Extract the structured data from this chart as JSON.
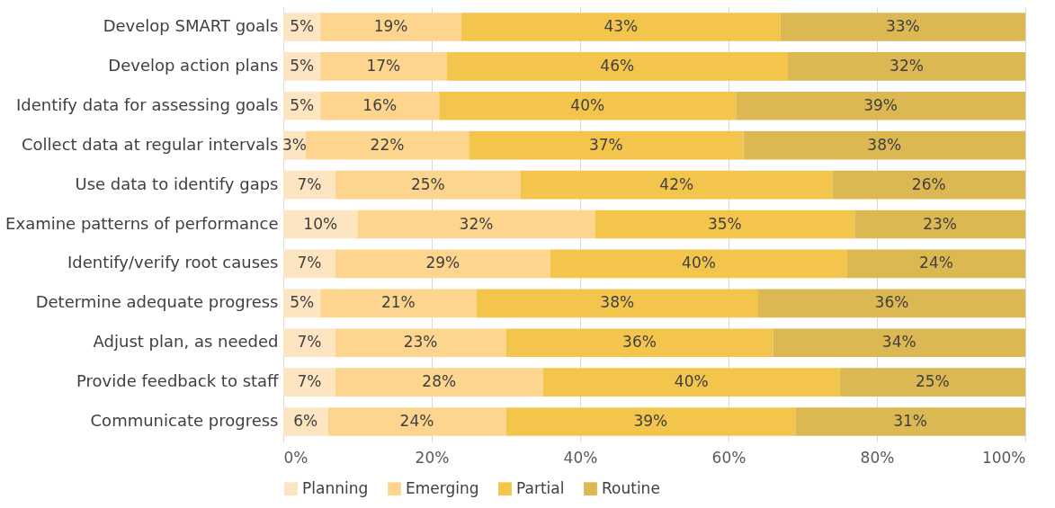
{
  "chart_data": {
    "type": "bar",
    "orientation": "horizontal",
    "stacked": true,
    "categories": [
      "Develop SMART goals",
      "Develop action plans",
      "Identify data for assessing goals",
      "Collect data at regular intervals",
      "Use data to identify gaps",
      "Examine patterns of performance",
      "Identify/verify root causes",
      "Determine adequate progress",
      "Adjust plan, as needed",
      "Provide feedback to staff",
      "Communicate progress"
    ],
    "series": [
      {
        "name": "Planning",
        "color": "#fde5c2",
        "values": [
          5,
          5,
          5,
          3,
          7,
          10,
          7,
          5,
          7,
          7,
          6
        ],
        "value_labels": [
          "5%",
          "5%",
          "5%",
          "3%",
          "7%",
          "10%",
          "7%",
          "5%",
          "7%",
          "7%",
          "6%"
        ]
      },
      {
        "name": "Emerging",
        "color": "#fdd58f",
        "values": [
          19,
          17,
          16,
          22,
          25,
          32,
          29,
          21,
          23,
          28,
          24
        ],
        "value_labels": [
          "19%",
          "17%",
          "16%",
          "22%",
          "25%",
          "32%",
          "29%",
          "21%",
          "23%",
          "28%",
          "24%"
        ]
      },
      {
        "name": "Partial",
        "color": "#f4c54c",
        "values": [
          43,
          46,
          40,
          37,
          42,
          35,
          40,
          38,
          36,
          40,
          39
        ],
        "value_labels": [
          "43%",
          "46%",
          "40%",
          "37%",
          "42%",
          "35%",
          "40%",
          "38%",
          "36%",
          "40%",
          "39%"
        ]
      },
      {
        "name": "Routine",
        "color": "#dcb852",
        "values": [
          33,
          32,
          39,
          38,
          26,
          23,
          24,
          36,
          34,
          25,
          31
        ],
        "value_labels": [
          "33%",
          "32%",
          "39%",
          "38%",
          "26%",
          "23%",
          "24%",
          "36%",
          "34%",
          "25%",
          "31%"
        ]
      }
    ],
    "xlim": [
      0,
      100
    ],
    "xticks": [
      {
        "value": 0,
        "label": "0%"
      },
      {
        "value": 20,
        "label": "20%"
      },
      {
        "value": 40,
        "label": "40%"
      },
      {
        "value": 60,
        "label": "60%"
      },
      {
        "value": 80,
        "label": "80%"
      },
      {
        "value": 100,
        "label": "100%"
      }
    ],
    "grid": "x",
    "legend": "bottom"
  }
}
